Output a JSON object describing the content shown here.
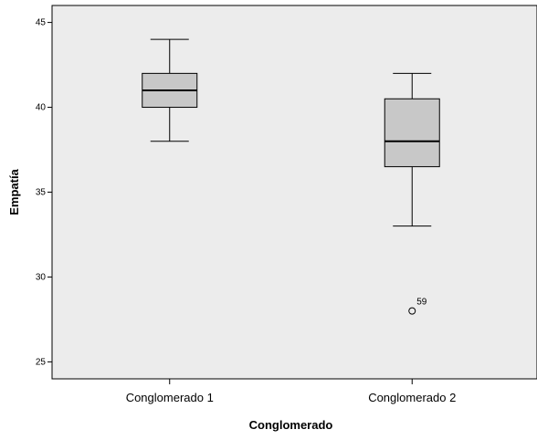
{
  "chart_data": {
    "type": "boxplot",
    "title": "",
    "xlabel": "Conglomerado",
    "ylabel": "Empatía",
    "ylim": [
      24,
      46
    ],
    "yticks": [
      25,
      30,
      35,
      40,
      45
    ],
    "grid": false,
    "categories": [
      "Conglomerado 1",
      "Conglomerado 2"
    ],
    "boxes": [
      {
        "category": "Conglomerado 1",
        "whisker_low": 38,
        "q1": 40,
        "median": 41,
        "q3": 42,
        "whisker_high": 44,
        "outliers": []
      },
      {
        "category": "Conglomerado 2",
        "whisker_low": 33,
        "q1": 36.5,
        "median": 38,
        "q3": 40.5,
        "whisker_high": 42,
        "outliers": [
          {
            "value": 28,
            "label": "59"
          }
        ]
      }
    ],
    "colors": {
      "plot_background": "#ececec",
      "box_fill": "#c8c8c8",
      "stroke": "#000000"
    }
  }
}
